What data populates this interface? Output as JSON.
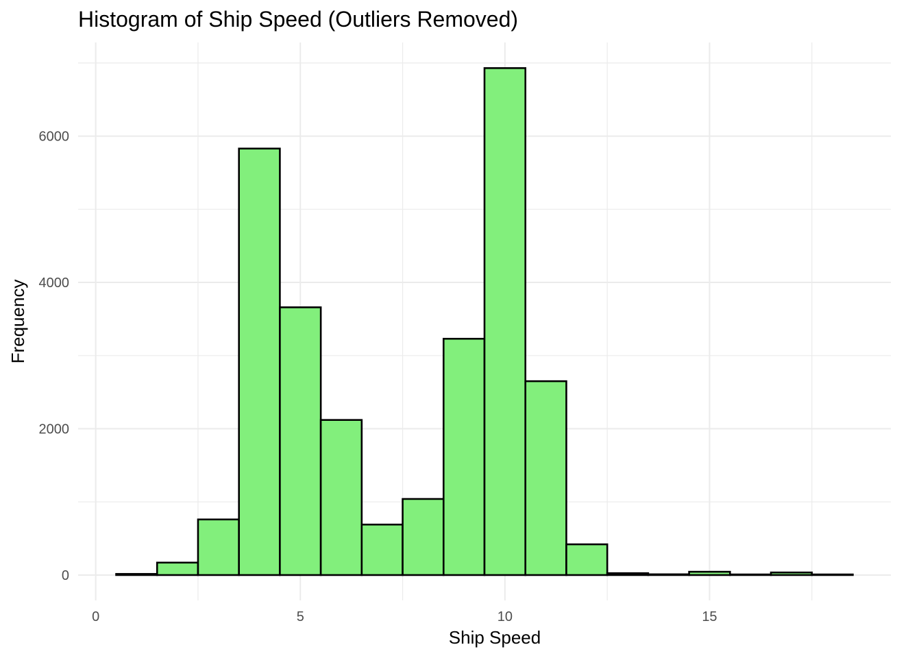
{
  "chart_data": {
    "type": "bar",
    "title": "Histogram of Ship Speed (Outliers Removed)",
    "xlabel": "Ship Speed",
    "ylabel": "Frequency",
    "bin_width": 1,
    "bins": [
      {
        "x0": 0.5,
        "x1": 1.5,
        "count": 15
      },
      {
        "x0": 1.5,
        "x1": 2.5,
        "count": 170
      },
      {
        "x0": 2.5,
        "x1": 3.5,
        "count": 760
      },
      {
        "x0": 3.5,
        "x1": 4.5,
        "count": 5830
      },
      {
        "x0": 4.5,
        "x1": 5.5,
        "count": 3660
      },
      {
        "x0": 5.5,
        "x1": 6.5,
        "count": 2120
      },
      {
        "x0": 6.5,
        "x1": 7.5,
        "count": 690
      },
      {
        "x0": 7.5,
        "x1": 8.5,
        "count": 1040
      },
      {
        "x0": 8.5,
        "x1": 9.5,
        "count": 3230
      },
      {
        "x0": 9.5,
        "x1": 10.5,
        "count": 6930
      },
      {
        "x0": 10.5,
        "x1": 11.5,
        "count": 2650
      },
      {
        "x0": 11.5,
        "x1": 12.5,
        "count": 420
      },
      {
        "x0": 12.5,
        "x1": 13.5,
        "count": 25
      },
      {
        "x0": 13.5,
        "x1": 14.5,
        "count": 10
      },
      {
        "x0": 14.5,
        "x1": 15.5,
        "count": 45
      },
      {
        "x0": 15.5,
        "x1": 16.5,
        "count": 8
      },
      {
        "x0": 16.5,
        "x1": 17.5,
        "count": 35
      },
      {
        "x0": 17.5,
        "x1": 18.5,
        "count": 8
      }
    ],
    "xlim": [
      -0.43,
      19.43
    ],
    "ylim": [
      -347,
      7280
    ],
    "x_ticks": [
      0,
      5,
      10,
      15
    ],
    "x_tick_labels": [
      "0",
      "5",
      "10",
      "15"
    ],
    "y_ticks": [
      0,
      2000,
      4000,
      6000
    ],
    "y_tick_labels": [
      "0",
      "2000",
      "4000",
      "6000"
    ],
    "grid": true,
    "legend": "none",
    "bar_fill": "#82ef7c",
    "bar_outline": "#000000"
  }
}
